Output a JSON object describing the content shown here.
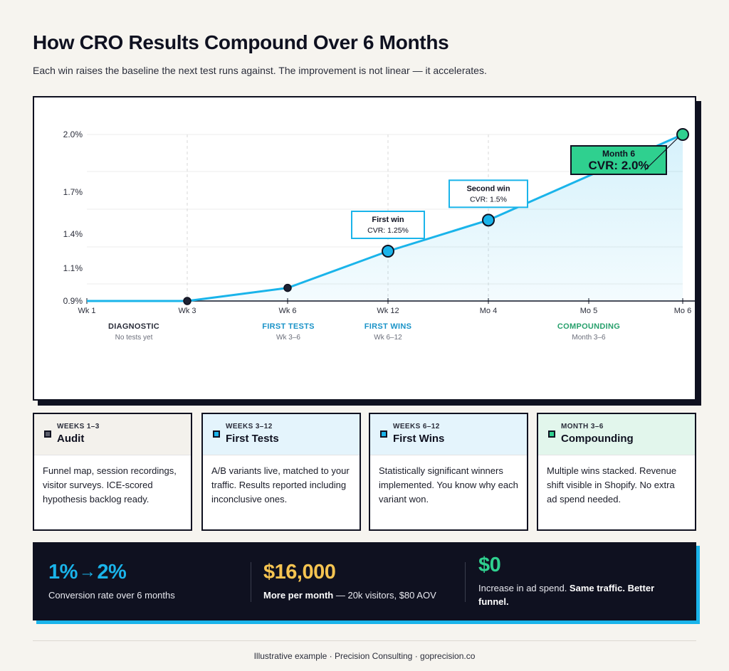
{
  "header": {
    "title": "How CRO Results Compound Over 6 Months",
    "subtitle": "Each win raises the baseline the next test runs against. The improvement is not linear — it accelerates."
  },
  "chart_data": {
    "type": "line",
    "x": [
      "Wk 1",
      "Wk 3",
      "Wk 6",
      "Wk 12",
      "Mo 4",
      "Mo 5",
      "Mo 6"
    ],
    "y_ticks": [
      "2.0%",
      "1.7%",
      "1.4%",
      "1.1%",
      "0.9%"
    ],
    "series": [
      {
        "values": [
          0.9,
          0.9,
          0.98,
          1.25,
          1.5,
          null,
          2.0
        ],
        "color": "#1ab4ea"
      }
    ],
    "points": [
      {
        "x": "Wk 3",
        "y": 0.9,
        "fill": "#1f2233"
      },
      {
        "x": "Wk 6",
        "y": 0.98,
        "fill": "#1f2233"
      },
      {
        "x": "Wk 12",
        "y": 1.25,
        "fill": "#1ab4ea"
      },
      {
        "x": "Mo 4",
        "y": 1.5,
        "fill": "#1ab4ea"
      },
      {
        "x": "Mo 6",
        "y": 2.0,
        "fill": "#2fd08f"
      }
    ],
    "annotations": [
      {
        "title": "First win",
        "text": "CVR: 1.25%",
        "x": "Wk 12",
        "y": 1.25
      },
      {
        "title": "Second win",
        "text": "CVR: 1.5%",
        "x": "Mo 4",
        "y": 1.5
      },
      {
        "title": "Month 6",
        "text": "CVR: 2.0%",
        "x": "Mo 6",
        "y": 2.0,
        "highlight": true
      }
    ],
    "grid": true,
    "phases": [
      {
        "name": "DIAGNOSTIC",
        "sub": "No tests yet",
        "color": "#2a2d3a"
      },
      {
        "name": "FIRST TESTS",
        "sub": "Wk 3–6",
        "color": "#1a93c8"
      },
      {
        "name": "FIRST WINS",
        "sub": "Wk 6–12",
        "color": "#1a93c8"
      },
      {
        "name": "COMPOUNDING",
        "sub": "Month 3–6",
        "color": "#27a06c"
      }
    ]
  },
  "cards": [
    {
      "kicker": "WEEKS 1–3",
      "name": "Audit",
      "body": "Funnel map, session recordings, visitor surveys. ICE-scored hypothesis backlog ready.",
      "head_bg": "#f3f1ec",
      "square": "#5b5e6b"
    },
    {
      "kicker": "WEEKS 3–12",
      "name": "First Tests",
      "body": "A/B variants live, matched to your traffic. Results reported including inconclusive ones.",
      "head_bg": "#e4f4fc",
      "square": "#1ab4ea"
    },
    {
      "kicker": "WEEKS 6–12",
      "name": "First Wins",
      "body": "Statistically significant winners implemented. You know why each variant won.",
      "head_bg": "#e4f4fc",
      "square": "#1ab4ea"
    },
    {
      "kicker": "MONTH 3–6",
      "name": "Compounding",
      "body": "Multiple wins stacked. Revenue shift visible in Shopify. No extra ad spend needed.",
      "head_bg": "#e2f6ec",
      "square": "#2fd08f"
    }
  ],
  "stats": [
    {
      "big_a": "1%",
      "big_arrow": "→",
      "big_b": "2%",
      "color": "#1ab4ea",
      "desc": "Conversion rate over 6 months"
    },
    {
      "big": "$16,000",
      "color": "#f5c451",
      "desc_bold": "More per month",
      "desc": " — 20k visitors, $80 AOV"
    },
    {
      "big": "$0",
      "color": "#2fd08f",
      "desc": "Increase in ad spend. ",
      "desc_bold": "Same traffic. Better funnel."
    }
  ],
  "footer": {
    "text": "Illustrative example · Precision Consulting · goprecision.co"
  }
}
